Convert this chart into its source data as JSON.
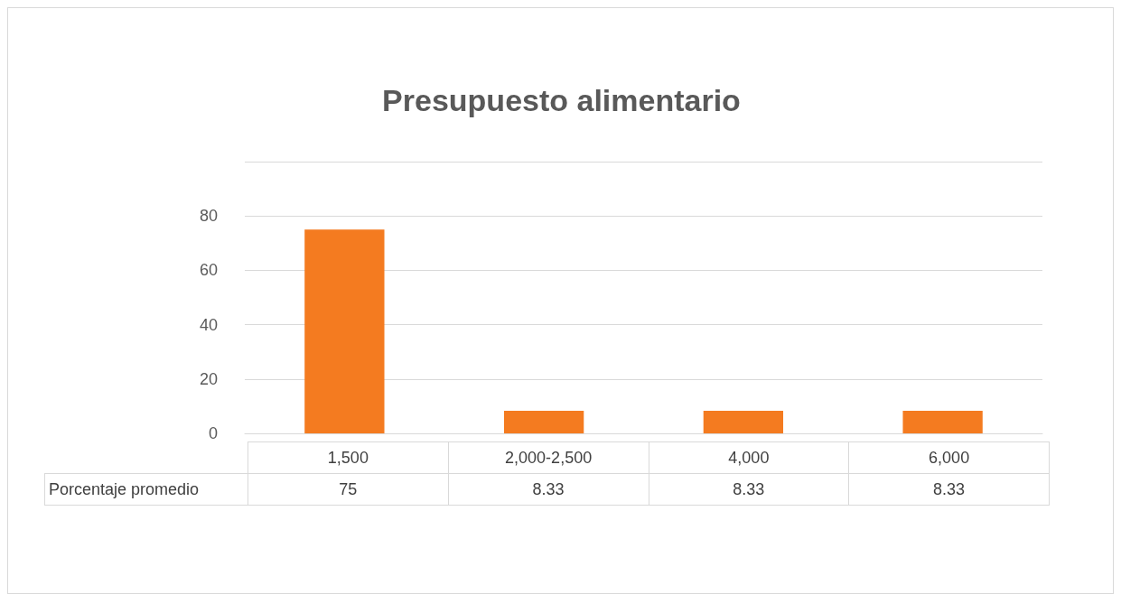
{
  "chart_data": {
    "type": "bar",
    "title": "Presupuesto alimentario",
    "categories": [
      "1,500",
      "2,000-2,500",
      "4,000",
      "6,000"
    ],
    "series": [
      {
        "name": "Porcentaje promedio",
        "color": "#f47b20",
        "values": [
          75,
          8.33,
          8.33,
          8.33
        ]
      }
    ],
    "ylim": [
      0,
      100
    ],
    "yticks": [
      0,
      20,
      40,
      60,
      80,
      {
        "value": 100,
        "label": null
      }
    ],
    "grid": "y",
    "data_labels": true,
    "legend": false
  }
}
